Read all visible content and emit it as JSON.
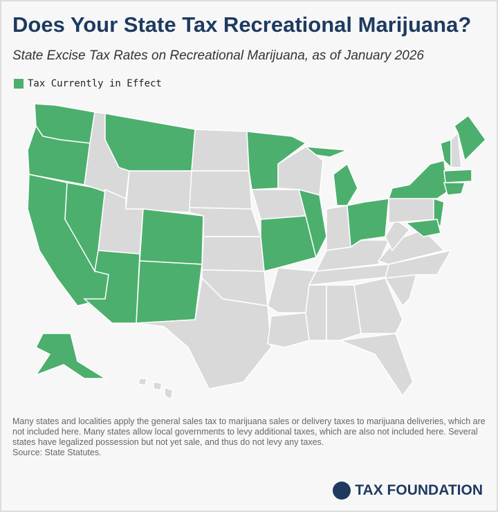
{
  "header": {
    "title": "Does Your State Tax Recreational Marijuana?",
    "subtitle": "State Excise Tax Rates on Recreational Marijuana, as of January 2026"
  },
  "legend": {
    "label": "Tax Currently in Effect",
    "color": "#4caf6e"
  },
  "map": {
    "other_color": "#d9d9d9",
    "border_color": "#ffffff"
  },
  "footer": {
    "note": "Many states and localities apply the general sales tax to marijuana sales or delivery taxes to marijuana deliveries, which are not included here. Many states allow local governments to levy additional taxes, which are also not included here. Several states have legalized possession but not yet sale, and thus do not levy any taxes.",
    "source": "Source: State Statutes.",
    "logo": "TAX FOUNDATION"
  }
}
